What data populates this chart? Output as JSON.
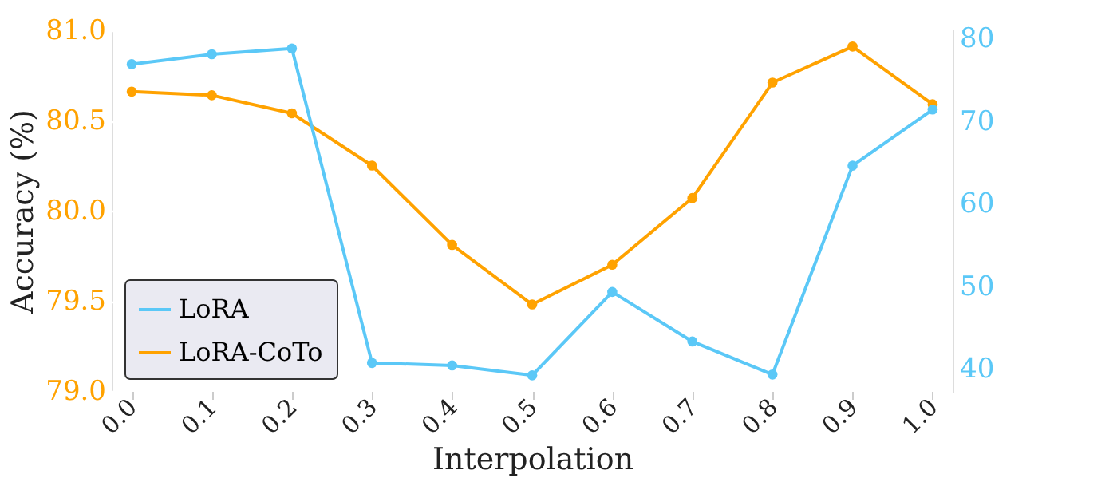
{
  "chart_data": {
    "type": "line",
    "xlabel": "Interpolation",
    "ylabel": "Accuracy (%)",
    "categories": [
      "0.0",
      "0.1",
      "0.2",
      "0.3",
      "0.4",
      "0.5",
      "0.6",
      "0.7",
      "0.8",
      "0.9",
      "1.0"
    ],
    "series": [
      {
        "name": "LoRA",
        "color": "#5bc8f7",
        "axis": "y2",
        "values": [
          76.9,
          78.1,
          78.8,
          40.7,
          40.4,
          39.2,
          49.3,
          43.3,
          39.3,
          64.6,
          71.4
        ]
      },
      {
        "name": "LoRA-CoTo",
        "color": "#ffa200",
        "values": [
          80.66,
          80.64,
          80.54,
          80.25,
          79.81,
          79.48,
          79.7,
          80.07,
          80.71,
          80.91,
          80.59
        ]
      }
    ],
    "ylim": [
      79.0,
      81.0
    ],
    "yticks": [
      {
        "value": 79,
        "label": "79.0"
      },
      79.5,
      {
        "value": 80,
        "label": "80.0"
      },
      80.5,
      {
        "value": 81,
        "label": "81.0"
      }
    ],
    "y2lim": [
      37.3,
      81.0
    ],
    "y2ticks": [
      40,
      50,
      60,
      70,
      80
    ],
    "grid": true,
    "legend": "bottom left",
    "marker": "circle",
    "line_style": "solid"
  }
}
